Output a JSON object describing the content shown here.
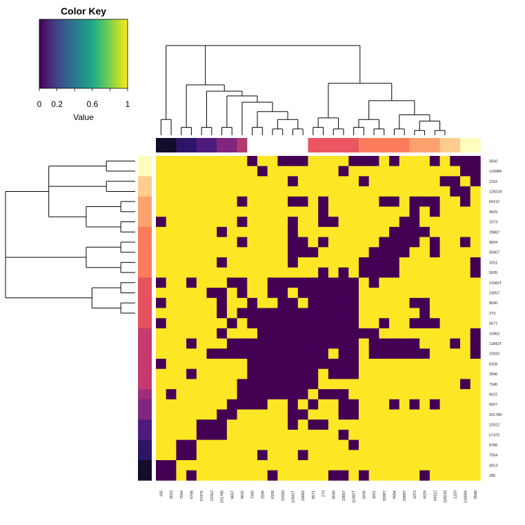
{
  "chart_data": {
    "type": "heatmap",
    "title": "",
    "xlabel": "",
    "ylabel": "",
    "color_key": {
      "title": "Color Key",
      "label": "Value",
      "ticks": [
        0,
        0.2,
        0.6,
        1
      ],
      "tick_labels": [
        "0",
        "0.2",
        "0.6",
        "1"
      ],
      "range": [
        0,
        1
      ],
      "colormap": "viridis"
    },
    "binary_colors": {
      "low": "#440154",
      "high": "#fde725"
    },
    "columns": [
      "185",
      "3013",
      "7054",
      "8786",
      "57475",
      "23312",
      "201780",
      "6657",
      "6622",
      "7345",
      "2596",
      "6328",
      "22920",
      "11842T",
      "10962",
      "6571",
      "273",
      "8590",
      "23057",
      "11582T",
      "5935",
      "3251",
      "55907",
      "9604",
      "29887",
      "1073",
      "4929",
      "64112",
      "128218",
      "1153",
      "116984",
      "9500"
    ],
    "rows": [
      "9500",
      "116984",
      "1153",
      "128218",
      "64112",
      "4929",
      "1073",
      "29887",
      "9604",
      "55907",
      "3251",
      "5935",
      "11582T",
      "23057",
      "8590",
      "273",
      "6571",
      "10962",
      "11842T",
      "22920",
      "6328",
      "2596",
      "7345",
      "6622",
      "6657",
      "201780",
      "23312",
      "57475",
      "8786",
      "7054",
      "3013",
      "185"
    ],
    "column_group_colors": [
      "#130c2a",
      "#130c2a",
      "#2d1566",
      "#2d1566",
      "#4e1a7b",
      "#4e1a7b",
      "#80267e",
      "#80267e",
      "#b43a6e",
      "#ffffff",
      "#ffffff",
      "#ffffff",
      "#ffffff",
      "#ffffff",
      "#ffffff",
      "#ea5661",
      "#ea5661",
      "#ea5661",
      "#ea5661",
      "#ea5661",
      "#fb7c5c",
      "#fb7c5c",
      "#fb7c5c",
      "#fb7c5c",
      "#fb7c5c",
      "#fca26f",
      "#fca26f",
      "#fca26f",
      "#fecc8f",
      "#fecc8f",
      "#fcfdbf",
      "#fcfdbf"
    ],
    "row_group_colors": [
      "#fcfdbf",
      "#fcfdbf",
      "#fecc8f",
      "#fecc8f",
      "#fca26f",
      "#fca26f",
      "#fca26f",
      "#fb7c5c",
      "#fb7c5c",
      "#fb7c5c",
      "#fb7c5c",
      "#fb7c5c",
      "#e8525e",
      "#e8525e",
      "#e8525e",
      "#e8525e",
      "#e8525e",
      "#c53b70",
      "#c53b70",
      "#c53b70",
      "#c53b70",
      "#c53b70",
      "#c53b70",
      "#a12c7a",
      "#80267e",
      "#80267e",
      "#4e1a7b",
      "#4e1a7b",
      "#2d1566",
      "#2d1566",
      "#130c2a",
      "#130c2a"
    ],
    "values": [
      [
        1,
        1,
        1,
        1,
        1,
        1,
        1,
        1,
        1,
        0,
        1,
        1,
        0,
        0,
        0,
        1,
        1,
        1,
        1,
        0,
        0,
        0,
        1,
        0,
        1,
        1,
        1,
        0,
        1,
        0,
        0,
        0
      ],
      [
        1,
        1,
        1,
        1,
        1,
        1,
        1,
        1,
        1,
        1,
        0,
        1,
        1,
        1,
        1,
        1,
        1,
        1,
        0,
        1,
        1,
        1,
        1,
        1,
        1,
        1,
        1,
        1,
        1,
        1,
        0,
        0
      ],
      [
        1,
        1,
        1,
        1,
        1,
        1,
        1,
        1,
        1,
        1,
        1,
        1,
        1,
        0,
        1,
        1,
        1,
        1,
        1,
        1,
        0,
        1,
        1,
        1,
        1,
        1,
        1,
        1,
        0,
        0,
        1,
        0
      ],
      [
        1,
        1,
        1,
        1,
        1,
        1,
        1,
        1,
        1,
        1,
        1,
        1,
        1,
        1,
        1,
        1,
        1,
        1,
        1,
        1,
        1,
        1,
        1,
        1,
        1,
        1,
        1,
        1,
        1,
        0,
        0,
        1
      ],
      [
        1,
        1,
        1,
        1,
        1,
        1,
        1,
        1,
        0,
        1,
        1,
        1,
        1,
        0,
        0,
        1,
        0,
        1,
        1,
        1,
        1,
        1,
        0,
        0,
        1,
        0,
        0,
        0,
        1,
        1,
        0,
        1
      ],
      [
        1,
        1,
        1,
        1,
        1,
        1,
        1,
        1,
        1,
        1,
        1,
        1,
        1,
        1,
        1,
        1,
        0,
        1,
        1,
        1,
        1,
        1,
        1,
        1,
        1,
        0,
        1,
        0,
        1,
        1,
        1,
        1
      ],
      [
        0,
        1,
        1,
        1,
        1,
        1,
        1,
        1,
        0,
        1,
        1,
        1,
        1,
        0,
        1,
        1,
        0,
        0,
        1,
        1,
        1,
        1,
        1,
        1,
        0,
        0,
        1,
        1,
        1,
        1,
        1,
        1
      ],
      [
        1,
        1,
        1,
        1,
        1,
        1,
        0,
        1,
        1,
        1,
        1,
        1,
        1,
        0,
        1,
        1,
        1,
        1,
        1,
        1,
        1,
        1,
        1,
        0,
        0,
        0,
        0,
        1,
        1,
        1,
        1,
        1
      ],
      [
        1,
        1,
        1,
        1,
        1,
        1,
        1,
        1,
        0,
        1,
        1,
        1,
        1,
        0,
        0,
        1,
        0,
        1,
        1,
        1,
        1,
        1,
        0,
        0,
        0,
        0,
        1,
        0,
        1,
        1,
        0,
        1
      ],
      [
        1,
        1,
        1,
        1,
        1,
        1,
        1,
        1,
        1,
        1,
        1,
        1,
        1,
        0,
        0,
        0,
        1,
        1,
        1,
        1,
        1,
        0,
        0,
        0,
        0,
        1,
        1,
        0,
        1,
        1,
        1,
        1
      ],
      [
        1,
        1,
        1,
        1,
        1,
        1,
        0,
        1,
        1,
        1,
        1,
        1,
        1,
        0,
        1,
        1,
        1,
        1,
        1,
        1,
        0,
        0,
        0,
        0,
        1,
        1,
        1,
        1,
        1,
        1,
        1,
        0
      ],
      [
        1,
        1,
        1,
        1,
        1,
        1,
        1,
        1,
        1,
        1,
        1,
        1,
        1,
        1,
        1,
        1,
        0,
        1,
        0,
        1,
        0,
        0,
        0,
        0,
        1,
        1,
        1,
        1,
        1,
        1,
        1,
        0
      ],
      [
        0,
        1,
        1,
        0,
        1,
        1,
        1,
        0,
        0,
        1,
        1,
        0,
        0,
        0,
        0,
        0,
        0,
        0,
        0,
        0,
        1,
        0,
        1,
        1,
        1,
        1,
        1,
        1,
        1,
        1,
        1,
        1
      ],
      [
        1,
        1,
        1,
        1,
        1,
        0,
        0,
        1,
        0,
        1,
        1,
        0,
        0,
        1,
        0,
        0,
        0,
        0,
        0,
        0,
        1,
        1,
        1,
        1,
        1,
        1,
        1,
        1,
        1,
        1,
        1,
        1
      ],
      [
        0,
        1,
        1,
        1,
        1,
        1,
        0,
        1,
        1,
        0,
        1,
        1,
        0,
        0,
        1,
        0,
        0,
        0,
        0,
        0,
        1,
        1,
        1,
        1,
        1,
        0,
        0,
        1,
        1,
        1,
        1,
        1
      ],
      [
        1,
        1,
        1,
        1,
        1,
        1,
        0,
        1,
        0,
        0,
        0,
        0,
        0,
        0,
        0,
        0,
        0,
        0,
        0,
        0,
        1,
        1,
        1,
        1,
        1,
        1,
        0,
        1,
        1,
        1,
        1,
        1
      ],
      [
        0,
        1,
        1,
        1,
        1,
        1,
        1,
        0,
        1,
        0,
        0,
        0,
        0,
        0,
        0,
        0,
        0,
        0,
        0,
        0,
        1,
        1,
        0,
        1,
        1,
        0,
        0,
        0,
        1,
        1,
        1,
        1
      ],
      [
        1,
        1,
        1,
        1,
        1,
        1,
        0,
        1,
        1,
        1,
        0,
        0,
        0,
        0,
        0,
        0,
        0,
        0,
        0,
        0,
        0,
        0,
        1,
        1,
        1,
        1,
        1,
        1,
        1,
        1,
        1,
        0
      ],
      [
        1,
        1,
        1,
        0,
        1,
        1,
        1,
        0,
        0,
        0,
        0,
        0,
        0,
        0,
        0,
        0,
        0,
        0,
        0,
        0,
        1,
        0,
        0,
        0,
        0,
        0,
        1,
        1,
        1,
        0,
        1,
        0
      ],
      [
        1,
        1,
        1,
        1,
        1,
        0,
        0,
        0,
        0,
        0,
        0,
        0,
        0,
        0,
        0,
        0,
        0,
        1,
        0,
        0,
        1,
        0,
        0,
        0,
        0,
        0,
        0,
        1,
        1,
        1,
        1,
        0
      ],
      [
        0,
        1,
        1,
        1,
        1,
        1,
        1,
        1,
        1,
        0,
        0,
        0,
        0,
        0,
        0,
        0,
        0,
        0,
        0,
        0,
        1,
        1,
        1,
        1,
        1,
        1,
        1,
        1,
        1,
        1,
        1,
        1
      ],
      [
        1,
        1,
        1,
        0,
        1,
        1,
        1,
        1,
        1,
        0,
        0,
        0,
        0,
        0,
        0,
        0,
        1,
        0,
        0,
        0,
        1,
        1,
        1,
        1,
        1,
        1,
        1,
        1,
        1,
        1,
        1,
        1
      ],
      [
        1,
        1,
        1,
        1,
        1,
        1,
        1,
        1,
        0,
        0,
        0,
        0,
        0,
        0,
        0,
        0,
        1,
        1,
        1,
        1,
        1,
        1,
        1,
        1,
        1,
        1,
        1,
        1,
        1,
        1,
        0,
        1
      ],
      [
        1,
        0,
        1,
        1,
        1,
        1,
        1,
        1,
        0,
        0,
        0,
        0,
        0,
        0,
        0,
        1,
        0,
        0,
        0,
        1,
        1,
        1,
        1,
        1,
        1,
        1,
        1,
        1,
        1,
        1,
        1,
        1
      ],
      [
        1,
        1,
        1,
        1,
        1,
        1,
        1,
        0,
        0,
        0,
        0,
        1,
        1,
        0,
        1,
        0,
        1,
        1,
        0,
        0,
        1,
        1,
        1,
        0,
        1,
        0,
        1,
        0,
        1,
        1,
        1,
        1
      ],
      [
        1,
        1,
        1,
        1,
        1,
        1,
        0,
        0,
        1,
        1,
        1,
        1,
        1,
        0,
        0,
        1,
        1,
        1,
        0,
        0,
        1,
        1,
        1,
        1,
        1,
        1,
        1,
        1,
        1,
        1,
        1,
        1
      ],
      [
        1,
        1,
        1,
        1,
        0,
        0,
        0,
        1,
        1,
        1,
        1,
        1,
        1,
        0,
        1,
        0,
        0,
        1,
        1,
        1,
        1,
        1,
        1,
        1,
        1,
        1,
        1,
        1,
        1,
        1,
        1,
        1
      ],
      [
        1,
        1,
        1,
        1,
        0,
        0,
        0,
        1,
        1,
        1,
        1,
        1,
        1,
        1,
        1,
        1,
        1,
        1,
        0,
        1,
        1,
        1,
        1,
        1,
        1,
        1,
        1,
        1,
        1,
        1,
        1,
        1
      ],
      [
        1,
        1,
        0,
        0,
        1,
        1,
        1,
        1,
        1,
        1,
        1,
        1,
        1,
        1,
        1,
        1,
        1,
        1,
        1,
        0,
        1,
        1,
        1,
        1,
        1,
        1,
        1,
        1,
        1,
        1,
        1,
        1
      ],
      [
        1,
        1,
        0,
        0,
        1,
        1,
        1,
        1,
        1,
        1,
        0,
        1,
        1,
        1,
        0,
        1,
        1,
        1,
        1,
        1,
        1,
        1,
        1,
        1,
        1,
        1,
        1,
        1,
        1,
        1,
        1,
        1
      ],
      [
        0,
        0,
        1,
        1,
        1,
        1,
        1,
        1,
        1,
        1,
        1,
        1,
        1,
        1,
        1,
        1,
        1,
        1,
        1,
        1,
        1,
        1,
        1,
        1,
        1,
        1,
        1,
        1,
        1,
        1,
        1,
        1
      ],
      [
        0,
        0,
        1,
        0,
        1,
        1,
        1,
        1,
        1,
        1,
        1,
        0,
        1,
        1,
        1,
        1,
        1,
        0,
        0,
        1,
        0,
        1,
        1,
        1,
        1,
        1,
        0,
        1,
        1,
        1,
        1,
        1
      ]
    ],
    "column_dendrogram": "(((3013:1,185:1):2,((7054:0.5,8786:0.5):2,((57475:0.5,23312:0.5):1.5,((6657:0.5,201780:0.5):1.3,(6622:1.2,((7345:0.5,2596:0.5):1,((6328:0.4,22920:0.4):0.6,(11842T:0.4,10962:0.4):0.6):0.5):0.6):0.4):0.3):0.4):2.5,(((6571:0.5,273:0.5):0.6,(8590:0.4,23057:0.4):0.7):2,(((11582T:0.5,5935:0.5):0.5,(3251:0.4,55907:0.4):0.6):1.2,((9604:0.4,29887:0.4):0.9,((1073:0.3,4929:0.3):0.6,(64112:0.3,128218:0.3):0.6):0.4):0.6):1.1):1.8);",
    "row_dendrogram": "(((9500:1,116984:1):2,(1153:1,128218:1):2,((64112:0.5,4929:0.5):1.2,(1073:0.5,29887:0.5):1.2):0.8):1.5,((9604:0.5,55907:0.5):1.2,(3251:0.5,5935:0.5):1.2):0.5,((11582T:0.5,23057:0.5):1,(8590:0.5,273:0.5):1):0.5);"
  }
}
